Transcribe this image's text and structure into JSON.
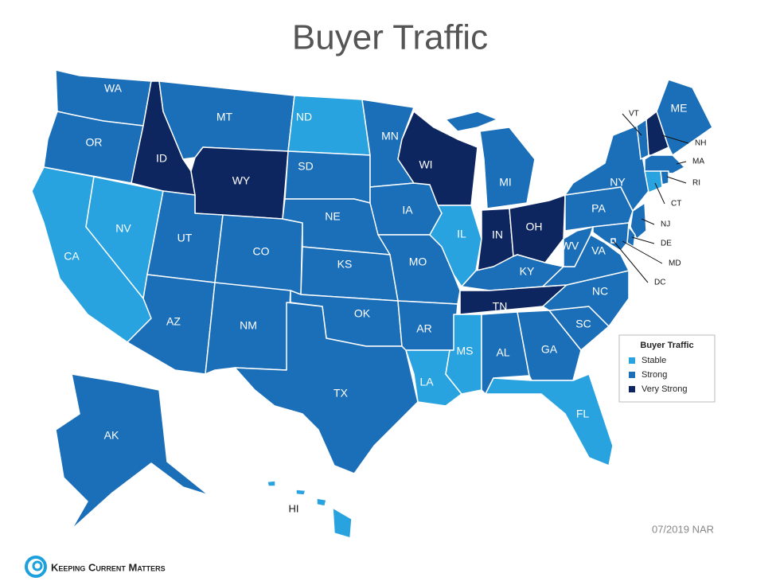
{
  "title": "Buyer Traffic",
  "legend": {
    "title": "Buyer Traffic",
    "items": [
      {
        "label": "Stable",
        "color": "#29a3df"
      },
      {
        "label": "Strong",
        "color": "#1b6fb8"
      },
      {
        "label": "Very Strong",
        "color": "#0e2660"
      }
    ]
  },
  "states": [
    {
      "label": "WA",
      "level": "Strong"
    },
    {
      "label": "OR",
      "level": "Strong"
    },
    {
      "label": "CA",
      "level": "Stable"
    },
    {
      "label": "NV",
      "level": "Stable"
    },
    {
      "label": "ID",
      "level": "Very Strong"
    },
    {
      "label": "MT",
      "level": "Strong"
    },
    {
      "label": "WY",
      "level": "Very Strong"
    },
    {
      "label": "UT",
      "level": "Strong"
    },
    {
      "label": "AZ",
      "level": "Strong"
    },
    {
      "label": "CO",
      "level": "Strong"
    },
    {
      "label": "NM",
      "level": "Strong"
    },
    {
      "label": "ND",
      "level": "Stable"
    },
    {
      "label": "SD",
      "level": "Strong"
    },
    {
      "label": "NE",
      "level": "Strong"
    },
    {
      "label": "KS",
      "level": "Strong"
    },
    {
      "label": "OK",
      "level": "Strong"
    },
    {
      "label": "TX",
      "level": "Strong"
    },
    {
      "label": "MN",
      "level": "Strong"
    },
    {
      "label": "IA",
      "level": "Strong"
    },
    {
      "label": "MO",
      "level": "Strong"
    },
    {
      "label": "AR",
      "level": "Strong"
    },
    {
      "label": "LA",
      "level": "Stable"
    },
    {
      "label": "WI",
      "level": "Very Strong"
    },
    {
      "label": "IL",
      "level": "Stable"
    },
    {
      "label": "MI",
      "level": "Strong"
    },
    {
      "label": "IN",
      "level": "Very Strong"
    },
    {
      "label": "OH",
      "level": "Very Strong"
    },
    {
      "label": "KY",
      "level": "Strong"
    },
    {
      "label": "TN",
      "level": "Very Strong"
    },
    {
      "label": "MS",
      "level": "Stable"
    },
    {
      "label": "AL",
      "level": "Strong"
    },
    {
      "label": "GA",
      "level": "Strong"
    },
    {
      "label": "FL",
      "level": "Stable"
    },
    {
      "label": "SC",
      "level": "Strong"
    },
    {
      "label": "NC",
      "level": "Strong"
    },
    {
      "label": "VA",
      "level": "Strong"
    },
    {
      "label": "WV",
      "level": "Strong"
    },
    {
      "label": "PA",
      "level": "Strong"
    },
    {
      "label": "NY",
      "level": "Strong"
    },
    {
      "label": "NJ",
      "level": "Strong"
    },
    {
      "label": "DE",
      "level": "Strong"
    },
    {
      "label": "MD",
      "level": "Strong"
    },
    {
      "label": "DC",
      "level": "Strong"
    },
    {
      "label": "VT",
      "level": "Strong"
    },
    {
      "label": "NH",
      "level": "Very Strong"
    },
    {
      "label": "ME",
      "level": "Strong"
    },
    {
      "label": "MA",
      "level": "Strong"
    },
    {
      "label": "CT",
      "level": "Stable"
    },
    {
      "label": "RI",
      "level": "Strong"
    },
    {
      "label": "AK",
      "level": "Strong"
    },
    {
      "label": "HI",
      "level": "Stable"
    }
  ],
  "source": "07/2019 NAR",
  "logo": "Keeping Current Matters"
}
